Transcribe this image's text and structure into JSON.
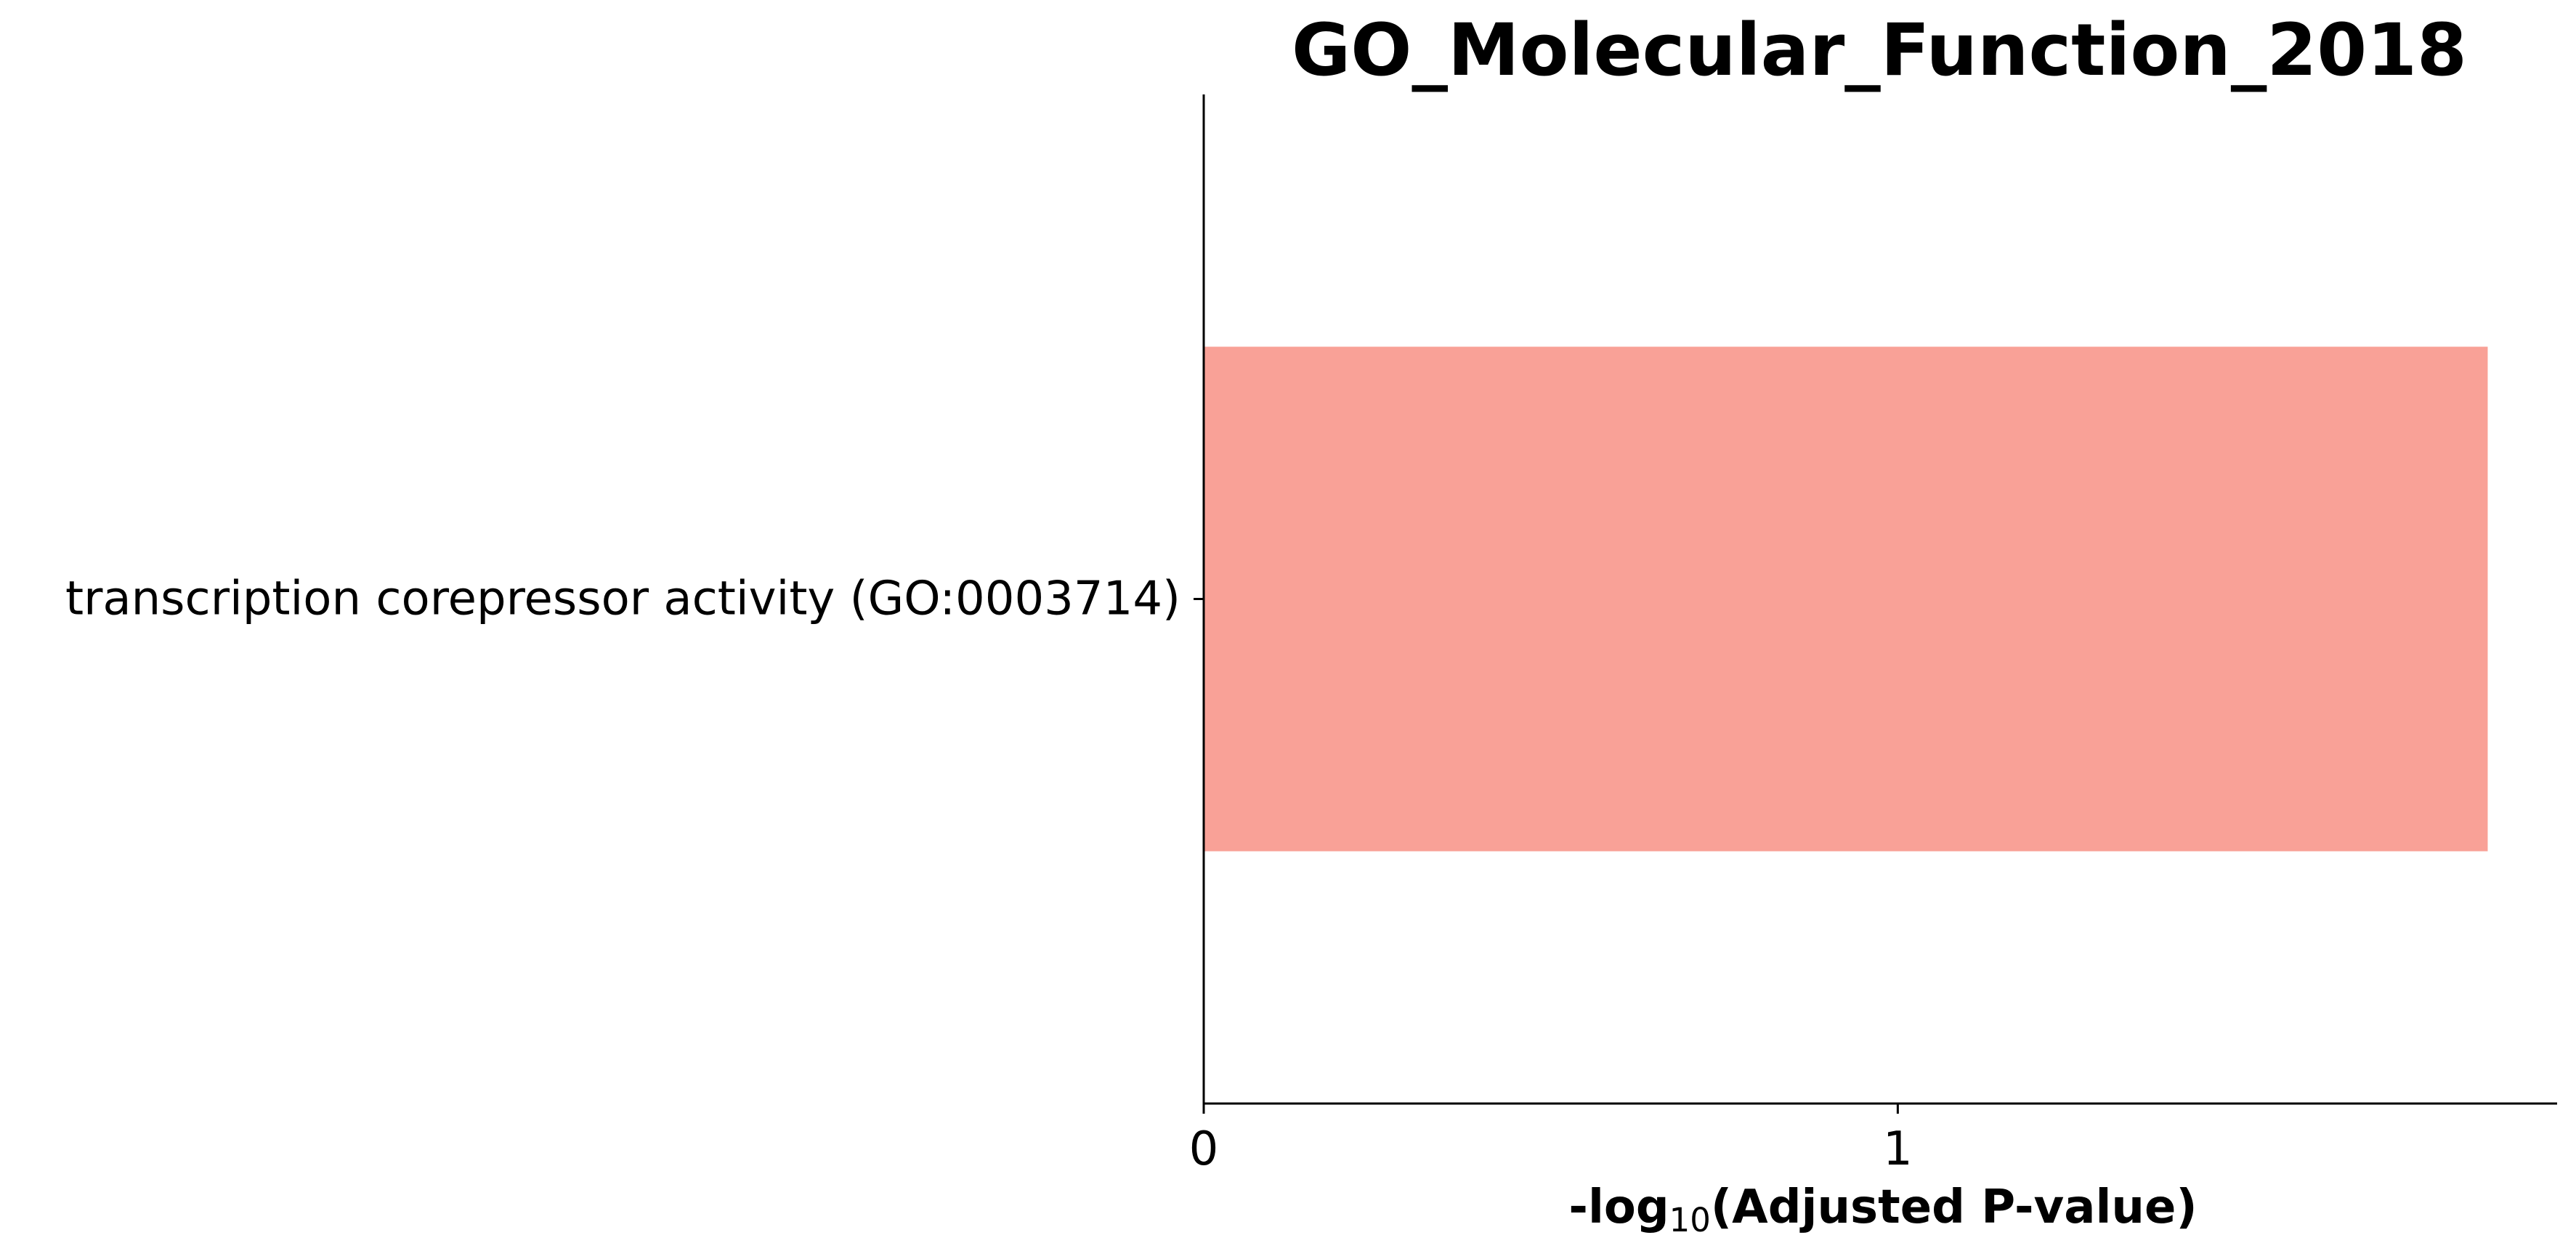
{
  "chart_data": {
    "type": "bar",
    "orientation": "horizontal",
    "title": "GO_Molecular_Function_2018",
    "xlabel_parts": {
      "prefix": "-log",
      "subscript": "10",
      "suffix": "(Adjusted P-value)"
    },
    "ylabel": "",
    "categories": [
      "transcription corepressor activity (GO:0003714)"
    ],
    "values": [
      1.85
    ],
    "xlim": [
      0,
      1.95
    ],
    "xticks": [
      0,
      1
    ],
    "xtick_labels": [
      "0",
      "1"
    ],
    "grid": false,
    "bar_color": "#f9a197"
  }
}
